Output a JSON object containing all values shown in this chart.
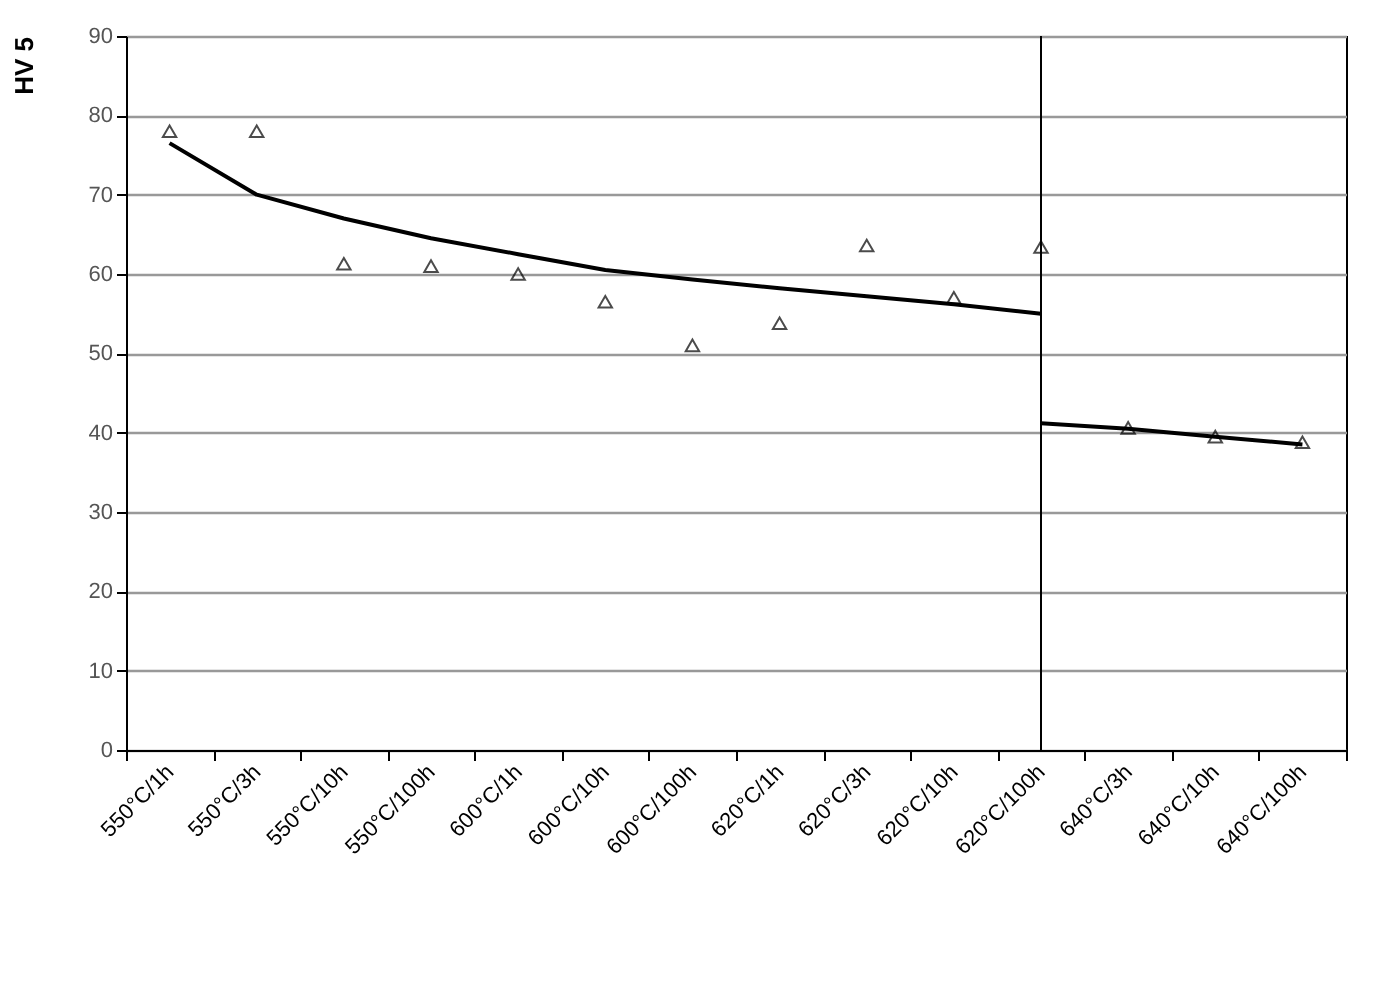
{
  "chart_data": {
    "type": "scatter",
    "ylabel": "HV 5",
    "categories": [
      "550°C/1h",
      "550°C/3h",
      "550°C/10h",
      "550°C/100h",
      "600°C/1h",
      "600°C/10h",
      "600°C/100h",
      "620°C/1h",
      "620°C/3h",
      "620°C/10h",
      "620°C/100h",
      "640°C/3h",
      "640°C/10h",
      "640°C/100h"
    ],
    "series": [
      {
        "type": "scatter",
        "color": "#000000",
        "marker": "triangle",
        "values": [
          78,
          78,
          61.3,
          61,
          60,
          56.5,
          51,
          53.8,
          63.6,
          57,
          63.4,
          40.6,
          39.5,
          38.8
        ]
      },
      {
        "type": "line",
        "color": "#000000",
        "x": [
          "550°C/1h",
          "550°C/3h",
          "550°C/10h",
          "550°C/100h",
          "600°C/1h",
          "600°C/10h",
          "600°C/100h",
          "620°C/1h",
          "620°C/3h",
          "620°C/10h",
          "620°C/100h"
        ],
        "values": [
          76.5,
          70,
          67,
          64.5,
          62.5,
          60.5,
          59.3,
          58.2,
          57.2,
          56.2,
          55
        ]
      },
      {
        "type": "line",
        "color": "#000000",
        "x": [
          "620°C/100h",
          "640°C/3h",
          "640°C/10h",
          "640°C/100h"
        ],
        "values": [
          41.2,
          40.5,
          39.5,
          38.5
        ]
      }
    ],
    "ylim": [
      0,
      90
    ],
    "yticks": [
      0,
      10,
      20,
      30,
      40,
      50,
      60,
      70,
      80,
      90
    ],
    "ref_lines": [
      {
        "axis": "x",
        "value": "620°C/100h",
        "color": "#000000"
      }
    ],
    "grid": "y"
  }
}
